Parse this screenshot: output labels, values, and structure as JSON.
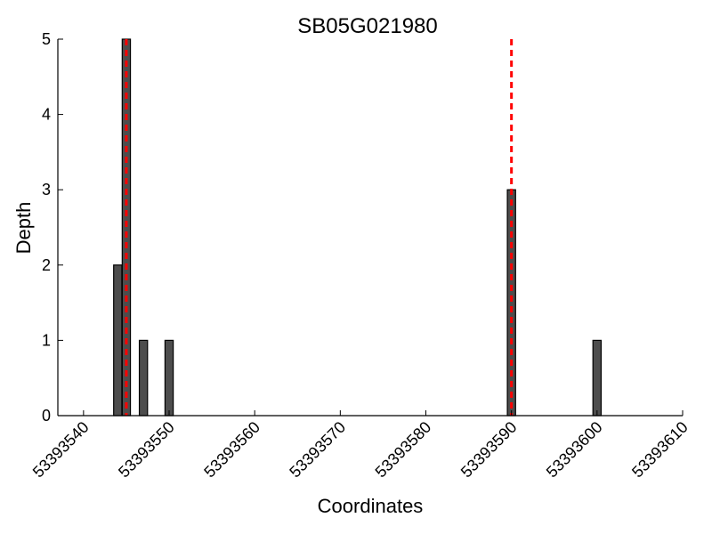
{
  "chart_data": {
    "type": "bar",
    "title": "SB05G021980",
    "xlabel": "Coordinates",
    "ylabel": "Depth",
    "xlim": [
      53393537,
      53393610
    ],
    "ylim": [
      0,
      5
    ],
    "xticks": [
      53393540,
      53393550,
      53393560,
      53393570,
      53393580,
      53393590,
      53393600,
      53393610
    ],
    "yticks": [
      0,
      1,
      2,
      3,
      4,
      5
    ],
    "grid": false,
    "legend": "none",
    "bar_color": "#4d4d4d",
    "bar_edge_color": "#000000",
    "marker_line_color": "#ff0000",
    "marker_line_style": "dashed",
    "bars": [
      {
        "x": 53393544,
        "value": 2
      },
      {
        "x": 53393545,
        "value": 5
      },
      {
        "x": 53393547,
        "value": 1
      },
      {
        "x": 53393550,
        "value": 1
      },
      {
        "x": 53393590,
        "value": 3
      },
      {
        "x": 53393600,
        "value": 1
      }
    ],
    "marker_lines": [
      {
        "x": 53393545
      },
      {
        "x": 53393590
      }
    ]
  }
}
